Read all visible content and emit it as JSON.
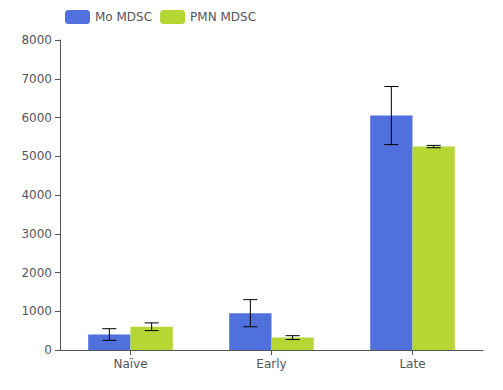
{
  "chart_data": {
    "type": "bar",
    "categories": [
      "Naïve",
      "Early",
      "Late"
    ],
    "series": [
      {
        "name": "Mo MDSC",
        "values": [
          400,
          950,
          6050
        ],
        "errors": [
          150,
          350,
          750
        ]
      },
      {
        "name": "PMN MDSC",
        "values": [
          600,
          320,
          5250
        ],
        "errors": [
          100,
          50,
          30
        ]
      }
    ],
    "ylim": [
      0,
      8000
    ],
    "yticks": [
      0,
      1000,
      2000,
      3000,
      4000,
      5000,
      6000,
      7000,
      8000
    ],
    "grid": false,
    "legend": "upper left"
  }
}
